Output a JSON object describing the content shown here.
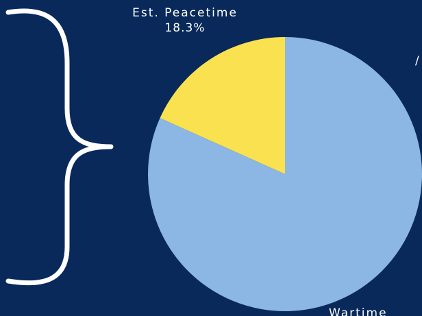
{
  "colors": {
    "background": "#08295a",
    "peacetime": "#f9e150",
    "wartime": "#8cb6e3",
    "brace": "#ffffff",
    "text": "#ffffff"
  },
  "icons": {
    "brace": "right-curly-brace"
  },
  "chart_data": {
    "type": "pie",
    "title": "",
    "start_angle_deg": 0,
    "direction": "counterclockwise",
    "slices": [
      {
        "label": "Est. Peacetime",
        "value": 18.3,
        "value_label": "18.3%",
        "color": "#f9e150"
      },
      {
        "label": "Wartime",
        "value": 81.7,
        "value_label": "",
        "color": "#8cb6e3"
      }
    ],
    "legend": "none"
  }
}
